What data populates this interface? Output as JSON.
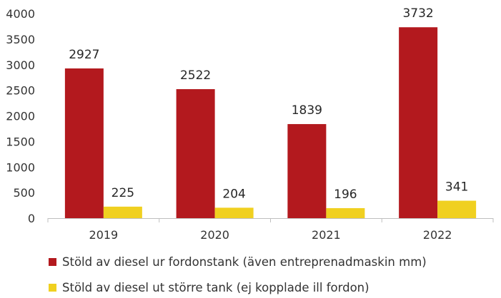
{
  "chart_data": {
    "type": "bar",
    "categories": [
      "2019",
      "2020",
      "2021",
      "2022"
    ],
    "series": [
      {
        "name": "Stöld av diesel ur fordonstank (även entreprenadmaskin mm)",
        "values": [
          2927,
          2522,
          1839,
          3732
        ],
        "color": "#b3191e"
      },
      {
        "name": "Stöld av diesel ut större tank (ej kopplade ill fordon)",
        "values": [
          225,
          204,
          196,
          341
        ],
        "color": "#f0d020"
      }
    ],
    "yticks": [
      "0",
      "500",
      "1000",
      "1500",
      "2000",
      "2500",
      "3000",
      "3500",
      "4000"
    ],
    "ylim": [
      0,
      4000
    ],
    "grid": false,
    "legend": "bottom",
    "data_labels": true
  }
}
